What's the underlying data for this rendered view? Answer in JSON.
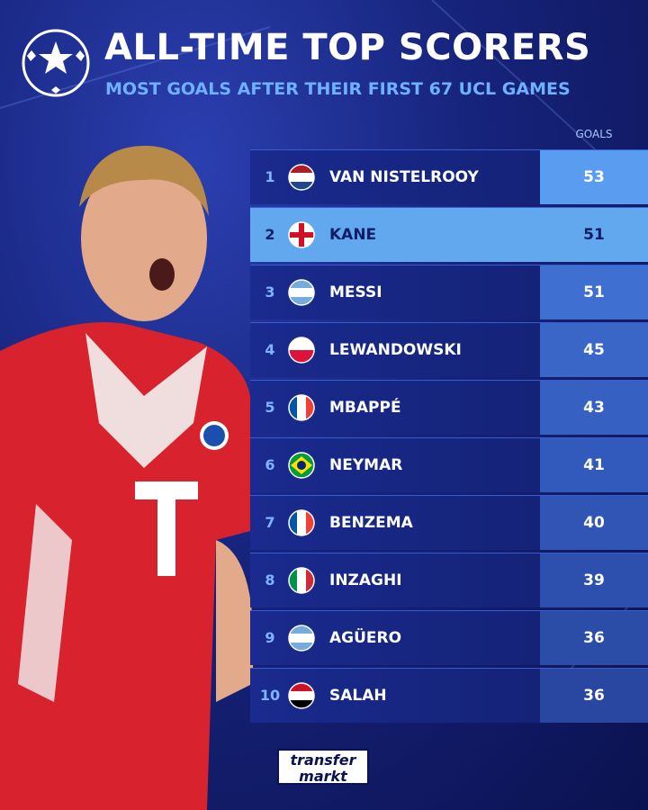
{
  "header": {
    "title": "ALL-TIME TOP SCORERS",
    "subtitle": "MOST GOALS AFTER THEIR FIRST 67 UCL GAMES"
  },
  "table": {
    "column_header": "GOALS",
    "rows": [
      {
        "rank": 1,
        "name": "VAN NISTELROOY",
        "goals": 53
      },
      {
        "rank": 2,
        "name": "KANE",
        "goals": 51
      },
      {
        "rank": 3,
        "name": "MESSI",
        "goals": 51
      },
      {
        "rank": 4,
        "name": "LEWANDOWSKI",
        "goals": 45
      },
      {
        "rank": 5,
        "name": "MBAPPÉ",
        "goals": 43
      },
      {
        "rank": 6,
        "name": "NEYMAR",
        "goals": 41
      },
      {
        "rank": 7,
        "name": "BENZEMA",
        "goals": 40
      },
      {
        "rank": 8,
        "name": "INZAGHI",
        "goals": 39
      },
      {
        "rank": 9,
        "name": "AGÜERO",
        "goals": 36
      },
      {
        "rank": 10,
        "name": "SALAH",
        "goals": 36
      }
    ]
  },
  "brand": {
    "line1": "transfer",
    "line2": "markt"
  }
}
